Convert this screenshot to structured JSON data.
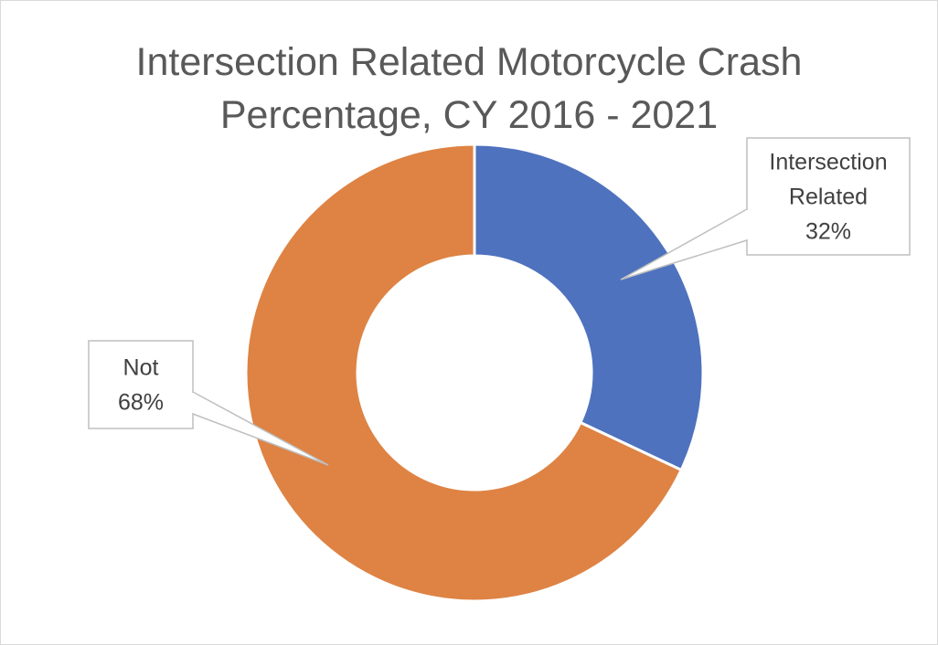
{
  "chart_data": {
    "type": "pie",
    "subtype": "doughnut",
    "title": [
      "Intersection Related Motorcycle Crash",
      "Percentage, CY 2016 - 2021"
    ],
    "slices": [
      {
        "label_lines": [
          "Intersection",
          "Related"
        ],
        "value": 32,
        "percent_label": "32%",
        "color": "#4E72BE"
      },
      {
        "label_lines": [
          "Not"
        ],
        "value": 68,
        "percent_label": "68%",
        "color": "#DE8344"
      }
    ],
    "legend": "none",
    "data_labels": "callouts"
  }
}
